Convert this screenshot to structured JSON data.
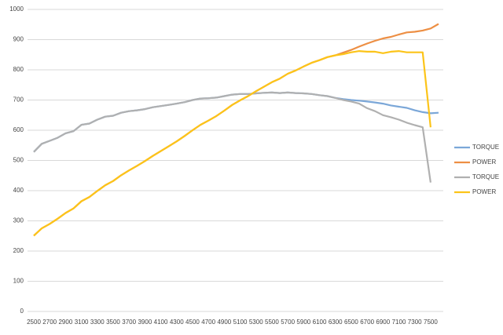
{
  "chart_data": {
    "type": "line",
    "categories": [
      2500,
      null,
      2700,
      null,
      2900,
      null,
      3100,
      null,
      3300,
      null,
      3500,
      null,
      3700,
      null,
      3900,
      null,
      4100,
      null,
      4300,
      null,
      4500,
      null,
      4700,
      null,
      4900,
      null,
      5100,
      null,
      5300,
      null,
      5500,
      null,
      5700,
      null,
      5900,
      null,
      6100,
      null,
      6300,
      null,
      6500,
      null,
      6700,
      null,
      6900,
      null,
      7100,
      null,
      7300,
      null,
      7500,
      null
    ],
    "series": [
      {
        "name": "TORQUE",
        "color": "#7ba7d8",
        "values": [
          528,
          555,
          565,
          575,
          590,
          597,
          618,
          622,
          635,
          645,
          648,
          658,
          663,
          666,
          670,
          676,
          680,
          684,
          688,
          693,
          700,
          705,
          706,
          708,
          713,
          718,
          720,
          720,
          722,
          724,
          725,
          723,
          725,
          723,
          722,
          720,
          716,
          713,
          707,
          703,
          700,
          698,
          695,
          692,
          688,
          682,
          678,
          674,
          666,
          660,
          656,
          658
        ]
      },
      {
        "name": "POWER",
        "color": "#ed8f44",
        "values": [
          251,
          275,
          290,
          307,
          326,
          341,
          365,
          379,
          399,
          418,
          432,
          451,
          467,
          482,
          498,
          515,
          531,
          547,
          563,
          581,
          600,
          618,
          632,
          647,
          665,
          684,
          699,
          713,
          729,
          744,
          759,
          771,
          787,
          798,
          811,
          823,
          832,
          842,
          848,
          857,
          866,
          877,
          887,
          896,
          904,
          909,
          917,
          924,
          926,
          930,
          937,
          952
        ]
      },
      {
        "name": "TORQUE",
        "color": "#b0b0b0",
        "values": [
          528,
          555,
          565,
          575,
          590,
          597,
          618,
          622,
          635,
          645,
          648,
          658,
          663,
          666,
          670,
          676,
          680,
          684,
          688,
          693,
          700,
          705,
          706,
          708,
          713,
          718,
          720,
          720,
          722,
          724,
          725,
          723,
          725,
          723,
          722,
          720,
          716,
          713,
          707,
          700,
          695,
          688,
          673,
          663,
          650,
          643,
          635,
          625,
          617,
          610,
          427,
          null
        ]
      },
      {
        "name": "POWER",
        "color": "#fcc419",
        "values": [
          251,
          275,
          290,
          307,
          326,
          341,
          365,
          379,
          399,
          418,
          432,
          451,
          467,
          482,
          498,
          515,
          531,
          547,
          563,
          581,
          600,
          618,
          632,
          647,
          665,
          684,
          699,
          713,
          729,
          744,
          759,
          771,
          787,
          798,
          811,
          823,
          832,
          842,
          848,
          852,
          858,
          862,
          860,
          860,
          855,
          860,
          862,
          858,
          858,
          858,
          610,
          null
        ]
      }
    ],
    "ylim": [
      0,
      1000
    ],
    "yticks": [
      0,
      100,
      200,
      300,
      400,
      500,
      600,
      700,
      800,
      900,
      1000
    ],
    "grid": true,
    "legend": "right"
  }
}
